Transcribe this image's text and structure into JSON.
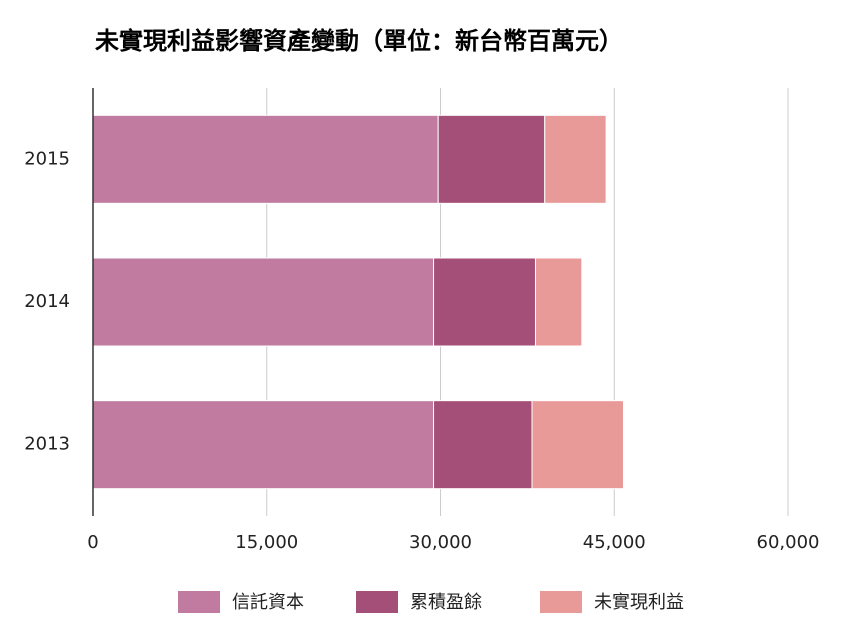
{
  "chart_data": {
    "type": "stacked-bar-horizontal",
    "title": "未實現利益影響資產變動（單位：新台幣百萬元）",
    "categories": [
      "2015",
      "2014",
      "2013"
    ],
    "series": [
      {
        "name": "信託資本",
        "color": "#c17ba0",
        "values": [
          29800,
          29400,
          29400
        ]
      },
      {
        "name": "累積盈餘",
        "color": "#a44f78",
        "values": [
          9200,
          8800,
          8500
        ]
      },
      {
        "name": "未實現利益",
        "color": "#e89a98",
        "values": [
          5300,
          4000,
          7900
        ]
      }
    ],
    "xlim": [
      0,
      60000
    ],
    "xticks": [
      0,
      {
        "value": 15000,
        "label": "15,000"
      },
      {
        "value": 30000,
        "label": "30,000"
      },
      {
        "value": 45000,
        "label": "45,000"
      },
      {
        "value": 60000,
        "label": "60,000"
      }
    ],
    "grid": true,
    "legend": "bottom"
  }
}
